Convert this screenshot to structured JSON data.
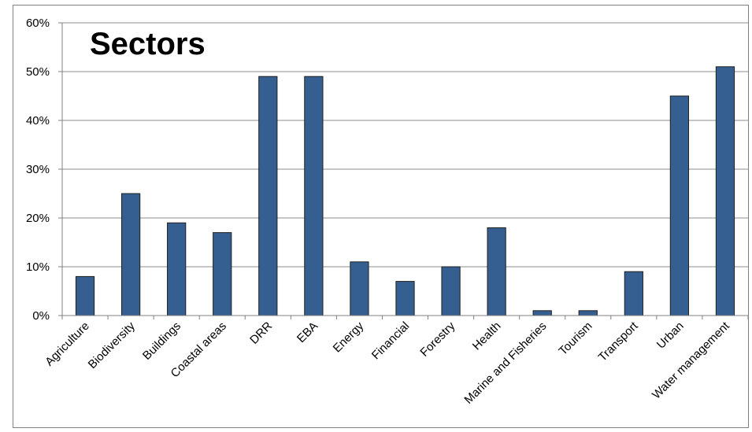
{
  "chart_data": {
    "type": "bar",
    "title": "Sectors",
    "xlabel": "",
    "ylabel": "",
    "ylim": [
      0,
      60
    ],
    "yticks": [
      "0%",
      "10%",
      "20%",
      "30%",
      "40%",
      "50%",
      "60%"
    ],
    "grid": true,
    "legend": "none",
    "categories": [
      "Agriculture",
      "Biodiversity",
      "Buildings",
      "Coastal areas",
      "DRR",
      "EBA",
      "Energy",
      "Financial",
      "Forestry",
      "Health",
      "Marine and Fisheries",
      "Tourism",
      "Transport",
      "Urban",
      "Water management"
    ],
    "values": [
      8,
      25,
      19,
      17,
      49,
      49,
      11,
      7,
      10,
      18,
      1,
      1,
      9,
      45,
      51
    ],
    "bar_color": "#365f91",
    "bar_edge_color": "#1f1f1f",
    "grid_color": "#8c8c8c"
  }
}
